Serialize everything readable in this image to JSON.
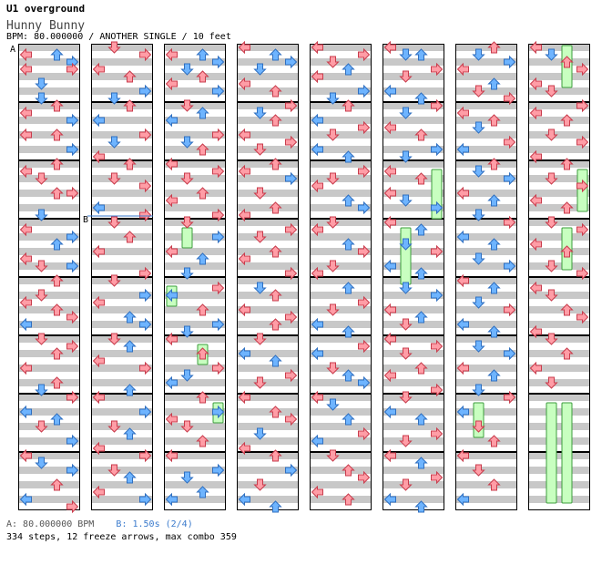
{
  "header": {
    "title": "U1 overground",
    "song": "Hunny Bunny",
    "info": "BPM: 80.000000 / ANOTHER SINGLE / 10 feet"
  },
  "markers": {
    "a_label": "A",
    "b_label": "B"
  },
  "footer": {
    "bpm_text": "A: 80.000000 BPM",
    "stop_text": "B: 1.50s (2/4)",
    "stats": "334 steps, 12 freeze arrows, max combo 359"
  },
  "colors": {
    "red_arrow": "#ff9da6",
    "red_stroke": "#c83c4c",
    "blue_arrow": "#6eb4ff",
    "blue_stroke": "#2f6fc0",
    "freeze": "#c8ffc0",
    "freeze_stroke": "#3c9c3c",
    "stripe": "#c8c8c8"
  },
  "chart_data": {
    "type": "table",
    "columns": 8,
    "measures_per_column": 8,
    "lanes": [
      "left",
      "down",
      "up",
      "right"
    ],
    "arrows": [
      [
        1,
        0,
        1
      ],
      [
        1,
        2,
        1
      ],
      [
        1,
        3,
        2
      ],
      [
        1,
        0,
        3
      ],
      [
        1,
        3,
        3
      ],
      [
        1,
        1,
        5
      ],
      [
        1,
        1,
        7
      ],
      [
        1,
        2,
        8
      ],
      [
        1,
        0,
        9
      ],
      [
        1,
        3,
        10
      ],
      [
        1,
        0,
        12
      ],
      [
        1,
        2,
        12
      ],
      [
        1,
        3,
        14
      ],
      [
        1,
        2,
        16
      ],
      [
        1,
        0,
        17
      ],
      [
        1,
        1,
        18
      ],
      [
        1,
        2,
        20
      ],
      [
        1,
        3,
        20
      ],
      [
        1,
        1,
        23
      ],
      [
        1,
        0,
        25
      ],
      [
        1,
        3,
        26
      ],
      [
        1,
        2,
        27
      ],
      [
        1,
        0,
        29
      ],
      [
        1,
        1,
        30
      ],
      [
        1,
        3,
        30
      ],
      [
        1,
        2,
        32
      ],
      [
        1,
        1,
        34
      ],
      [
        1,
        0,
        35
      ],
      [
        1,
        2,
        36
      ],
      [
        1,
        3,
        37
      ],
      [
        1,
        0,
        38
      ],
      [
        1,
        1,
        40
      ],
      [
        1,
        3,
        41
      ],
      [
        1,
        2,
        42
      ],
      [
        1,
        0,
        44
      ],
      [
        1,
        2,
        46
      ],
      [
        1,
        1,
        47
      ],
      [
        1,
        3,
        48
      ],
      [
        1,
        0,
        50
      ],
      [
        1,
        2,
        51
      ],
      [
        1,
        1,
        52
      ],
      [
        1,
        3,
        54
      ],
      [
        1,
        0,
        56
      ],
      [
        1,
        1,
        57
      ],
      [
        1,
        3,
        58
      ],
      [
        1,
        2,
        60
      ],
      [
        1,
        0,
        62
      ],
      [
        1,
        3,
        63
      ],
      [
        2,
        1,
        0
      ],
      [
        2,
        3,
        1
      ],
      [
        2,
        0,
        3
      ],
      [
        2,
        2,
        4
      ],
      [
        2,
        3,
        6
      ],
      [
        2,
        1,
        7
      ],
      [
        2,
        2,
        8
      ],
      [
        2,
        0,
        10
      ],
      [
        2,
        3,
        12
      ],
      [
        2,
        1,
        13
      ],
      [
        2,
        0,
        15
      ],
      [
        2,
        2,
        16
      ],
      [
        2,
        1,
        18
      ],
      [
        2,
        3,
        19
      ],
      [
        2,
        0,
        22
      ],
      [
        2,
        3,
        23
      ],
      [
        2,
        1,
        24
      ],
      [
        2,
        2,
        26
      ],
      [
        2,
        0,
        28
      ],
      [
        2,
        3,
        31
      ],
      [
        2,
        1,
        32
      ],
      [
        2,
        3,
        34
      ],
      [
        2,
        0,
        35
      ],
      [
        2,
        2,
        37
      ],
      [
        2,
        3,
        38
      ],
      [
        2,
        1,
        40
      ],
      [
        2,
        2,
        41
      ],
      [
        2,
        0,
        43
      ],
      [
        2,
        3,
        44
      ],
      [
        2,
        2,
        47
      ],
      [
        2,
        0,
        48
      ],
      [
        2,
        3,
        50
      ],
      [
        2,
        1,
        52
      ],
      [
        2,
        2,
        53
      ],
      [
        2,
        0,
        55
      ],
      [
        2,
        3,
        56
      ],
      [
        2,
        1,
        58
      ],
      [
        2,
        2,
        59
      ],
      [
        2,
        0,
        61
      ],
      [
        2,
        3,
        62
      ],
      [
        3,
        0,
        1
      ],
      [
        3,
        2,
        1
      ],
      [
        3,
        3,
        2
      ],
      [
        3,
        1,
        3
      ],
      [
        3,
        2,
        4
      ],
      [
        3,
        0,
        5
      ],
      [
        3,
        3,
        6
      ],
      [
        3,
        1,
        8
      ],
      [
        3,
        2,
        9
      ],
      [
        3,
        0,
        10
      ],
      [
        3,
        3,
        12
      ],
      [
        3,
        1,
        13
      ],
      [
        3,
        2,
        14
      ],
      [
        3,
        0,
        16
      ],
      [
        3,
        3,
        17
      ],
      [
        3,
        1,
        18
      ],
      [
        3,
        2,
        20
      ],
      [
        3,
        0,
        21
      ],
      [
        3,
        3,
        23
      ],
      [
        3,
        1,
        24
      ],
      [
        3,
        3,
        26
      ],
      [
        3,
        0,
        28
      ],
      [
        3,
        2,
        29
      ],
      [
        3,
        1,
        31
      ],
      [
        3,
        3,
        33
      ],
      [
        3,
        0,
        34
      ],
      [
        3,
        2,
        36
      ],
      [
        3,
        3,
        38
      ],
      [
        3,
        1,
        39
      ],
      [
        3,
        0,
        40
      ],
      [
        3,
        2,
        42
      ],
      [
        3,
        3,
        44
      ],
      [
        3,
        1,
        45
      ],
      [
        3,
        0,
        46
      ],
      [
        3,
        2,
        48
      ],
      [
        3,
        3,
        50
      ],
      [
        3,
        0,
        51
      ],
      [
        3,
        1,
        52
      ],
      [
        3,
        2,
        54
      ],
      [
        3,
        0,
        56
      ],
      [
        3,
        3,
        58
      ],
      [
        3,
        1,
        59
      ],
      [
        3,
        2,
        61
      ],
      [
        3,
        0,
        62
      ],
      [
        4,
        0,
        0
      ],
      [
        4,
        2,
        1
      ],
      [
        4,
        3,
        2
      ],
      [
        4,
        1,
        3
      ],
      [
        4,
        0,
        5
      ],
      [
        4,
        2,
        6
      ],
      [
        4,
        3,
        8
      ],
      [
        4,
        1,
        9
      ],
      [
        4,
        2,
        10
      ],
      [
        4,
        0,
        12
      ],
      [
        4,
        3,
        13
      ],
      [
        4,
        1,
        14
      ],
      [
        4,
        2,
        16
      ],
      [
        4,
        0,
        17
      ],
      [
        4,
        3,
        18
      ],
      [
        4,
        1,
        20
      ],
      [
        4,
        2,
        22
      ],
      [
        4,
        0,
        23
      ],
      [
        4,
        3,
        25
      ],
      [
        4,
        1,
        26
      ],
      [
        4,
        2,
        28
      ],
      [
        4,
        0,
        29
      ],
      [
        4,
        3,
        31
      ],
      [
        4,
        1,
        33
      ],
      [
        4,
        2,
        34
      ],
      [
        4,
        0,
        36
      ],
      [
        4,
        3,
        37
      ],
      [
        4,
        2,
        38
      ],
      [
        4,
        1,
        40
      ],
      [
        4,
        0,
        42
      ],
      [
        4,
        2,
        43
      ],
      [
        4,
        3,
        45
      ],
      [
        4,
        1,
        46
      ],
      [
        4,
        0,
        48
      ],
      [
        4,
        2,
        50
      ],
      [
        4,
        3,
        51
      ],
      [
        4,
        1,
        53
      ],
      [
        4,
        0,
        55
      ],
      [
        4,
        2,
        56
      ],
      [
        4,
        3,
        58
      ],
      [
        4,
        1,
        60
      ],
      [
        4,
        0,
        62
      ],
      [
        4,
        2,
        63
      ],
      [
        5,
        0,
        0
      ],
      [
        5,
        3,
        1
      ],
      [
        5,
        1,
        2
      ],
      [
        5,
        2,
        3
      ],
      [
        5,
        0,
        4
      ],
      [
        5,
        3,
        6
      ],
      [
        5,
        1,
        7
      ],
      [
        5,
        2,
        8
      ],
      [
        5,
        0,
        10
      ],
      [
        5,
        3,
        11
      ],
      [
        5,
        1,
        12
      ],
      [
        5,
        0,
        14
      ],
      [
        5,
        2,
        15
      ],
      [
        5,
        3,
        17
      ],
      [
        5,
        1,
        18
      ],
      [
        5,
        0,
        19
      ],
      [
        5,
        2,
        21
      ],
      [
        5,
        3,
        22
      ],
      [
        5,
        1,
        24
      ],
      [
        5,
        0,
        25
      ],
      [
        5,
        2,
        27
      ],
      [
        5,
        3,
        28
      ],
      [
        5,
        1,
        30
      ],
      [
        5,
        0,
        31
      ],
      [
        5,
        2,
        33
      ],
      [
        5,
        3,
        35
      ],
      [
        5,
        1,
        36
      ],
      [
        5,
        0,
        38
      ],
      [
        5,
        2,
        39
      ],
      [
        5,
        3,
        41
      ],
      [
        5,
        0,
        42
      ],
      [
        5,
        1,
        44
      ],
      [
        5,
        2,
        45
      ],
      [
        5,
        3,
        46
      ],
      [
        5,
        0,
        48
      ],
      [
        5,
        1,
        49
      ],
      [
        5,
        2,
        51
      ],
      [
        5,
        3,
        53
      ],
      [
        5,
        0,
        54
      ],
      [
        5,
        1,
        56
      ],
      [
        5,
        2,
        58
      ],
      [
        5,
        3,
        59
      ],
      [
        5,
        0,
        61
      ],
      [
        5,
        2,
        62
      ],
      [
        6,
        0,
        0
      ],
      [
        6,
        1,
        1
      ],
      [
        6,
        2,
        1
      ],
      [
        6,
        3,
        3
      ],
      [
        6,
        1,
        4
      ],
      [
        6,
        0,
        6
      ],
      [
        6,
        2,
        7
      ],
      [
        6,
        3,
        8
      ],
      [
        6,
        1,
        9
      ],
      [
        6,
        0,
        11
      ],
      [
        6,
        2,
        12
      ],
      [
        6,
        3,
        14
      ],
      [
        6,
        1,
        15
      ],
      [
        6,
        0,
        17
      ],
      [
        6,
        2,
        18
      ],
      [
        6,
        0,
        20
      ],
      [
        6,
        1,
        21
      ],
      [
        6,
        3,
        22
      ],
      [
        6,
        0,
        24
      ],
      [
        6,
        2,
        25
      ],
      [
        6,
        1,
        27
      ],
      [
        6,
        3,
        28
      ],
      [
        6,
        0,
        30
      ],
      [
        6,
        2,
        31
      ],
      [
        6,
        1,
        33
      ],
      [
        6,
        3,
        34
      ],
      [
        6,
        0,
        36
      ],
      [
        6,
        2,
        37
      ],
      [
        6,
        1,
        38
      ],
      [
        6,
        0,
        40
      ],
      [
        6,
        3,
        41
      ],
      [
        6,
        1,
        42
      ],
      [
        6,
        2,
        44
      ],
      [
        6,
        0,
        45
      ],
      [
        6,
        3,
        47
      ],
      [
        6,
        1,
        48
      ],
      [
        6,
        0,
        50
      ],
      [
        6,
        2,
        51
      ],
      [
        6,
        3,
        53
      ],
      [
        6,
        1,
        54
      ],
      [
        6,
        0,
        56
      ],
      [
        6,
        2,
        57
      ],
      [
        6,
        3,
        59
      ],
      [
        6,
        1,
        60
      ],
      [
        6,
        0,
        62
      ],
      [
        6,
        2,
        63
      ],
      [
        7,
        1,
        1
      ],
      [
        7,
        2,
        0
      ],
      [
        7,
        3,
        2
      ],
      [
        7,
        0,
        3
      ],
      [
        7,
        2,
        5
      ],
      [
        7,
        1,
        6
      ],
      [
        7,
        3,
        7
      ],
      [
        7,
        0,
        9
      ],
      [
        7,
        2,
        10
      ],
      [
        7,
        1,
        11
      ],
      [
        7,
        3,
        13
      ],
      [
        7,
        0,
        14
      ],
      [
        7,
        2,
        16
      ],
      [
        7,
        1,
        17
      ],
      [
        7,
        3,
        18
      ],
      [
        7,
        0,
        20
      ],
      [
        7,
        2,
        21
      ],
      [
        7,
        1,
        23
      ],
      [
        7,
        3,
        24
      ],
      [
        7,
        0,
        26
      ],
      [
        7,
        2,
        27
      ],
      [
        7,
        1,
        29
      ],
      [
        7,
        3,
        30
      ],
      [
        7,
        0,
        32
      ],
      [
        7,
        2,
        33
      ],
      [
        7,
        1,
        35
      ],
      [
        7,
        3,
        36
      ],
      [
        7,
        0,
        38
      ],
      [
        7,
        2,
        39
      ],
      [
        7,
        1,
        41
      ],
      [
        7,
        3,
        42
      ],
      [
        7,
        0,
        44
      ],
      [
        7,
        2,
        45
      ],
      [
        7,
        1,
        47
      ],
      [
        7,
        3,
        48
      ],
      [
        7,
        0,
        50
      ],
      [
        7,
        1,
        52
      ],
      [
        7,
        2,
        54
      ],
      [
        7,
        0,
        56
      ],
      [
        7,
        1,
        58
      ],
      [
        7,
        2,
        60
      ],
      [
        7,
        0,
        62
      ],
      [
        8,
        0,
        0
      ],
      [
        8,
        1,
        1
      ],
      [
        8,
        2,
        2
      ],
      [
        8,
        3,
        3
      ],
      [
        8,
        0,
        5
      ],
      [
        8,
        1,
        6
      ],
      [
        8,
        3,
        8
      ],
      [
        8,
        0,
        9
      ],
      [
        8,
        2,
        10
      ],
      [
        8,
        1,
        12
      ],
      [
        8,
        3,
        13
      ],
      [
        8,
        0,
        15
      ],
      [
        8,
        2,
        16
      ],
      [
        8,
        1,
        18
      ],
      [
        8,
        3,
        19
      ],
      [
        8,
        0,
        21
      ],
      [
        8,
        2,
        22
      ],
      [
        8,
        1,
        24
      ],
      [
        8,
        3,
        25
      ],
      [
        8,
        0,
        27
      ],
      [
        8,
        2,
        28
      ],
      [
        8,
        1,
        30
      ],
      [
        8,
        3,
        31
      ],
      [
        8,
        0,
        33
      ],
      [
        8,
        1,
        34
      ],
      [
        8,
        2,
        36
      ],
      [
        8,
        3,
        37
      ],
      [
        8,
        0,
        39
      ],
      [
        8,
        1,
        40
      ],
      [
        8,
        2,
        42
      ],
      [
        8,
        0,
        44
      ],
      [
        8,
        1,
        46
      ]
    ],
    "freezes": [
      [
        3,
        1,
        25,
        27
      ],
      [
        3,
        0,
        33,
        35
      ],
      [
        3,
        2,
        41,
        43
      ],
      [
        3,
        3,
        49,
        51
      ],
      [
        6,
        3,
        17,
        23
      ],
      [
        6,
        1,
        25,
        32
      ],
      [
        7,
        1,
        49,
        53
      ],
      [
        8,
        2,
        0,
        5
      ],
      [
        8,
        3,
        17,
        22
      ],
      [
        8,
        2,
        25,
        30
      ],
      [
        8,
        1,
        49,
        62
      ],
      [
        8,
        2,
        49,
        62
      ]
    ]
  }
}
